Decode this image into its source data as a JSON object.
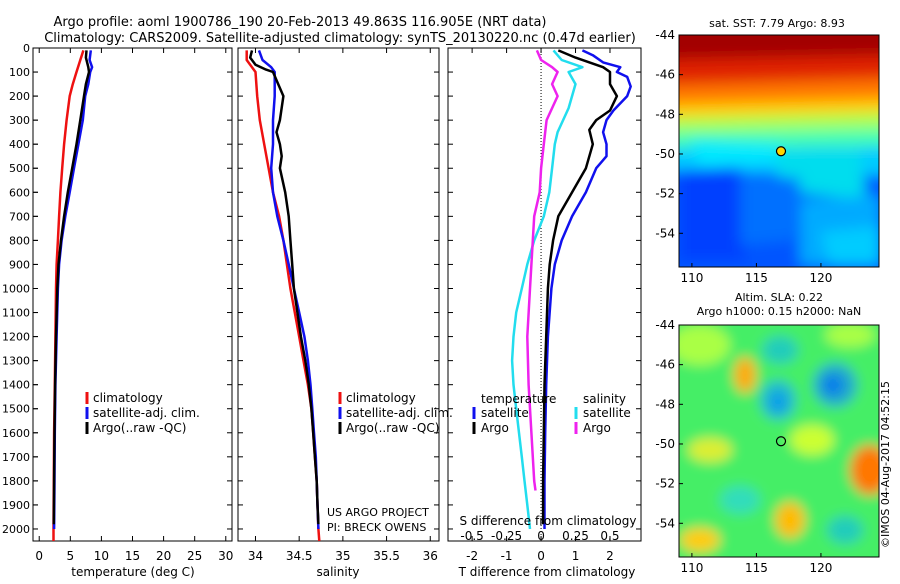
{
  "header": {
    "line1": "Argo profile: aoml 1900786_190 20-Feb-2013 49.863S 116.905E (NRT data)",
    "line2": "Climatology: CARS2009. Satellite-adjusted climatology: synTS_20130220.nc (0.47d earlier)"
  },
  "colors": {
    "climatology": "#ee1111",
    "satellite": "#1010ee",
    "argo": "#000000",
    "sat_salinity": "#22ddee",
    "argo_salinity": "#ee22ee"
  },
  "chart_data": [
    {
      "type": "line",
      "id": "temperature",
      "xlabel": "temperature (deg C)",
      "ylabel": "",
      "xlim": [
        -1,
        31
      ],
      "ylim": [
        2050,
        0
      ],
      "xticks": [
        0,
        5,
        10,
        15,
        20,
        25,
        30
      ],
      "yticks": [
        0,
        100,
        200,
        300,
        400,
        500,
        600,
        700,
        800,
        900,
        1000,
        1100,
        1200,
        1300,
        1400,
        1500,
        1600,
        1700,
        1800,
        1900,
        2000
      ],
      "legend": [
        "climatology",
        "satellite-adj. clim.",
        "Argo(..raw -QC)"
      ],
      "series": [
        {
          "name": "climatology",
          "color": "#ee1111",
          "points": [
            [
              7.1,
              10
            ],
            [
              6.6,
              50
            ],
            [
              6.0,
              100
            ],
            [
              5.4,
              150
            ],
            [
              4.9,
              200
            ],
            [
              4.4,
              300
            ],
            [
              4.0,
              400
            ],
            [
              3.7,
              500
            ],
            [
              3.4,
              600
            ],
            [
              3.2,
              700
            ],
            [
              3.0,
              800
            ],
            [
              2.8,
              900
            ],
            [
              2.7,
              1000
            ],
            [
              2.6,
              1200
            ],
            [
              2.5,
              1400
            ],
            [
              2.4,
              1600
            ],
            [
              2.35,
              1800
            ],
            [
              2.3,
              2000
            ],
            [
              2.3,
              2050
            ]
          ]
        },
        {
          "name": "satellite-adj. clim.",
          "color": "#1010ee",
          "points": [
            [
              8.3,
              10
            ],
            [
              8.1,
              50
            ],
            [
              8.5,
              80
            ],
            [
              8.2,
              100
            ],
            [
              7.9,
              150
            ],
            [
              7.4,
              200
            ],
            [
              7.0,
              300
            ],
            [
              6.3,
              400
            ],
            [
              5.6,
              500
            ],
            [
              4.9,
              600
            ],
            [
              4.2,
              700
            ],
            [
              3.6,
              800
            ],
            [
              3.2,
              900
            ],
            [
              3.0,
              1000
            ],
            [
              2.8,
              1200
            ],
            [
              2.6,
              1400
            ],
            [
              2.5,
              1600
            ],
            [
              2.45,
              1800
            ],
            [
              2.4,
              2000
            ]
          ]
        },
        {
          "name": "Argo(..raw -QC)",
          "color": "#000000",
          "points": [
            [
              7.6,
              10
            ],
            [
              7.5,
              40
            ],
            [
              7.9,
              80
            ],
            [
              8.0,
              100
            ],
            [
              7.5,
              150
            ],
            [
              7.2,
              200
            ],
            [
              6.6,
              300
            ],
            [
              6.0,
              400
            ],
            [
              5.3,
              500
            ],
            [
              4.6,
              600
            ],
            [
              4.0,
              700
            ],
            [
              3.5,
              800
            ],
            [
              3.1,
              900
            ],
            [
              2.9,
              1000
            ],
            [
              2.7,
              1200
            ],
            [
              2.55,
              1400
            ],
            [
              2.45,
              1600
            ],
            [
              2.4,
              1800
            ],
            [
              2.35,
              1980
            ]
          ]
        }
      ]
    },
    {
      "type": "line",
      "id": "salinity",
      "xlabel": "salinity",
      "ylabel": "",
      "xlim": [
        33.8,
        36.1
      ],
      "ylim": [
        2050,
        0
      ],
      "xticks": [
        34,
        34.5,
        35,
        35.5,
        36
      ],
      "legend": [
        "climatology",
        "satellite-adj. clim.",
        "Argo(..raw -QC)"
      ],
      "annotation": [
        "US ARGO PROJECT",
        "PI: BRECK OWENS"
      ],
      "series": [
        {
          "name": "climatology",
          "color": "#ee1111",
          "points": [
            [
              33.9,
              10
            ],
            [
              33.9,
              50
            ],
            [
              34.0,
              100
            ],
            [
              34.02,
              200
            ],
            [
              34.05,
              300
            ],
            [
              34.1,
              400
            ],
            [
              34.15,
              500
            ],
            [
              34.2,
              600
            ],
            [
              34.27,
              700
            ],
            [
              34.32,
              800
            ],
            [
              34.36,
              900
            ],
            [
              34.4,
              1000
            ],
            [
              34.45,
              1100
            ],
            [
              34.5,
              1200
            ],
            [
              34.55,
              1300
            ],
            [
              34.6,
              1400
            ],
            [
              34.64,
              1500
            ],
            [
              34.66,
              1600
            ],
            [
              34.68,
              1700
            ],
            [
              34.7,
              1800
            ],
            [
              34.71,
              1900
            ],
            [
              34.72,
              2000
            ],
            [
              34.73,
              2050
            ]
          ]
        },
        {
          "name": "satellite-adj. clim.",
          "color": "#1010ee",
          "points": [
            [
              34.04,
              10
            ],
            [
              34.08,
              50
            ],
            [
              34.18,
              80
            ],
            [
              34.22,
              100
            ],
            [
              34.22,
              200
            ],
            [
              34.2,
              300
            ],
            [
              34.2,
              400
            ],
            [
              34.18,
              500
            ],
            [
              34.2,
              600
            ],
            [
              34.25,
              700
            ],
            [
              34.32,
              800
            ],
            [
              34.38,
              900
            ],
            [
              34.44,
              1000
            ],
            [
              34.5,
              1100
            ],
            [
              34.56,
              1200
            ],
            [
              34.6,
              1300
            ],
            [
              34.63,
              1400
            ],
            [
              34.65,
              1500
            ],
            [
              34.67,
              1600
            ],
            [
              34.69,
              1700
            ],
            [
              34.7,
              1800
            ],
            [
              34.71,
              1900
            ],
            [
              34.72,
              2000
            ]
          ]
        },
        {
          "name": "Argo(..raw -QC)",
          "color": "#000000",
          "points": [
            [
              33.96,
              10
            ],
            [
              33.94,
              40
            ],
            [
              34.0,
              70
            ],
            [
              34.12,
              90
            ],
            [
              34.2,
              100
            ],
            [
              34.26,
              150
            ],
            [
              34.32,
              200
            ],
            [
              34.28,
              300
            ],
            [
              34.24,
              350
            ],
            [
              34.28,
              400
            ],
            [
              34.3,
              450
            ],
            [
              34.28,
              500
            ],
            [
              34.34,
              600
            ],
            [
              34.38,
              700
            ],
            [
              34.4,
              800
            ],
            [
              34.42,
              900
            ],
            [
              34.44,
              1000
            ],
            [
              34.48,
              1100
            ],
            [
              34.52,
              1200
            ],
            [
              34.57,
              1300
            ],
            [
              34.61,
              1400
            ],
            [
              34.64,
              1500
            ],
            [
              34.66,
              1600
            ],
            [
              34.68,
              1700
            ],
            [
              34.7,
              1800
            ],
            [
              34.71,
              1900
            ],
            [
              34.72,
              1980
            ]
          ]
        }
      ]
    },
    {
      "type": "line",
      "id": "difference",
      "xlabel": "T difference from climatology",
      "xlabel2": "S difference from climatology",
      "xlim": [
        -2.7,
        2.9
      ],
      "ylim": [
        2050,
        0
      ],
      "xticks": [
        -2,
        -1,
        0,
        1,
        2
      ],
      "xticks2": [
        -0.5,
        -0.25,
        0,
        0.25,
        0.5
      ],
      "legend_titles": [
        "temperature",
        "salinity"
      ],
      "legend": [
        "satellite",
        "Argo",
        "satellite",
        "Argo"
      ],
      "series": [
        {
          "name": "satellite",
          "group": "temperature",
          "color": "#1010ee",
          "points": [
            [
              1.2,
              10
            ],
            [
              1.5,
              30
            ],
            [
              1.8,
              60
            ],
            [
              2.3,
              80
            ],
            [
              2.2,
              100
            ],
            [
              2.5,
              120
            ],
            [
              2.6,
              160
            ],
            [
              2.5,
              200
            ],
            [
              2.1,
              260
            ],
            [
              1.9,
              300
            ],
            [
              1.8,
              350
            ],
            [
              1.9,
              400
            ],
            [
              1.9,
              450
            ],
            [
              1.6,
              500
            ],
            [
              1.3,
              600
            ],
            [
              0.9,
              700
            ],
            [
              0.6,
              800
            ],
            [
              0.4,
              900
            ],
            [
              0.3,
              1000
            ],
            [
              0.2,
              1200
            ],
            [
              0.15,
              1400
            ],
            [
              0.12,
              1600
            ],
            [
              0.1,
              1800
            ],
            [
              0.1,
              2000
            ]
          ]
        },
        {
          "name": "Argo",
          "group": "temperature",
          "color": "#000000",
          "points": [
            [
              0.5,
              10
            ],
            [
              1.0,
              40
            ],
            [
              1.8,
              80
            ],
            [
              2.0,
              100
            ],
            [
              2.0,
              150
            ],
            [
              2.2,
              200
            ],
            [
              2.0,
              260
            ],
            [
              1.6,
              300
            ],
            [
              1.4,
              340
            ],
            [
              1.5,
              400
            ],
            [
              1.3,
              500
            ],
            [
              0.9,
              600
            ],
            [
              0.5,
              700
            ],
            [
              0.35,
              800
            ],
            [
              0.25,
              900
            ],
            [
              0.2,
              1000
            ],
            [
              0.15,
              1200
            ],
            [
              0.1,
              1400
            ],
            [
              0.08,
              1600
            ],
            [
              0.06,
              1800
            ],
            [
              0.06,
              1980
            ]
          ]
        },
        {
          "name": "satellite",
          "group": "salinity",
          "color": "#22ddee",
          "points": [
            [
              0.09,
              10
            ],
            [
              0.15,
              50
            ],
            [
              0.3,
              80
            ],
            [
              0.2,
              100
            ],
            [
              0.25,
              150
            ],
            [
              0.2,
              250
            ],
            [
              0.12,
              350
            ],
            [
              0.1,
              400
            ],
            [
              0.08,
              500
            ],
            [
              0.06,
              600
            ],
            [
              0.02,
              700
            ],
            [
              -0.05,
              800
            ],
            [
              -0.1,
              900
            ],
            [
              -0.14,
              1000
            ],
            [
              -0.18,
              1100
            ],
            [
              -0.2,
              1200
            ],
            [
              -0.21,
              1300
            ],
            [
              -0.2,
              1400
            ],
            [
              -0.18,
              1500
            ],
            [
              -0.16,
              1600
            ],
            [
              -0.14,
              1700
            ],
            [
              -0.12,
              1800
            ],
            [
              -0.1,
              1900
            ],
            [
              -0.08,
              2000
            ]
          ]
        },
        {
          "name": "Argo",
          "group": "salinity",
          "color": "#ee22ee",
          "points": [
            [
              -0.03,
              10
            ],
            [
              0.0,
              50
            ],
            [
              0.08,
              80
            ],
            [
              0.12,
              100
            ],
            [
              0.08,
              150
            ],
            [
              0.12,
              200
            ],
            [
              0.08,
              250
            ],
            [
              0.04,
              300
            ],
            [
              0.02,
              400
            ],
            [
              0.0,
              500
            ],
            [
              -0.01,
              600
            ],
            [
              -0.05,
              700
            ],
            [
              -0.06,
              800
            ],
            [
              -0.07,
              900
            ],
            [
              -0.08,
              1000
            ],
            [
              -0.1,
              1200
            ],
            [
              -0.09,
              1400
            ],
            [
              -0.07,
              1600
            ],
            [
              -0.05,
              1800
            ],
            [
              -0.04,
              1840
            ]
          ]
        }
      ]
    },
    {
      "type": "heatmap",
      "id": "sst_map",
      "title": "sat. SST: 7.79  Argo: 8.93",
      "xlim": [
        109,
        124.5
      ],
      "ylim": [
        -55.7,
        -44
      ],
      "xticks": [
        110,
        115,
        120
      ],
      "yticks": [
        -44,
        -46,
        -48,
        -50,
        -52,
        -54
      ],
      "marker": {
        "lon": 116.905,
        "lat": -49.863
      }
    },
    {
      "type": "heatmap",
      "id": "sla_map",
      "title": "Altim. SLA: 0.22",
      "subtitle": "Argo h1000: 0.15 h2000: NaN",
      "xlim": [
        109,
        124.5
      ],
      "ylim": [
        -55.7,
        -44
      ],
      "xticks": [
        110,
        115,
        120
      ],
      "yticks": [
        -44,
        -46,
        -48,
        -50,
        -52,
        -54
      ],
      "marker": {
        "lon": 116.905,
        "lat": -49.863
      }
    }
  ],
  "watermark": "©IMOS 04-Aug-2017 04:52:15"
}
